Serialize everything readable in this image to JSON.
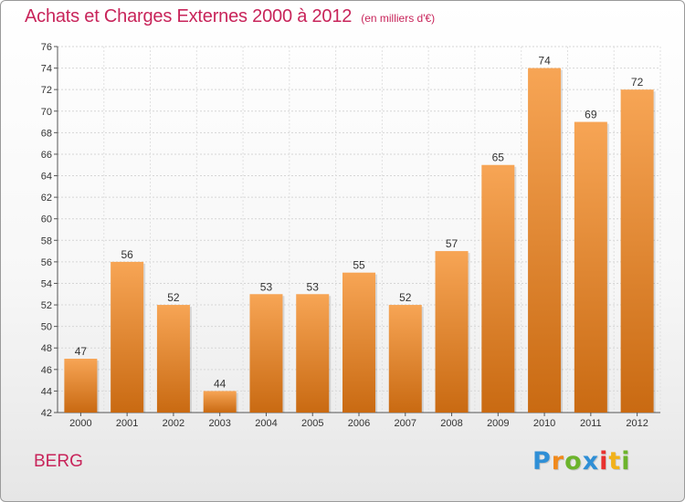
{
  "header": {
    "title": "Achats et Charges Externes 2000 à 2012",
    "subtitle": "(en milliers d'€)"
  },
  "footer": {
    "city": "BERG",
    "logo": [
      "P",
      "r",
      "o",
      "x",
      "i",
      "t",
      "i"
    ]
  },
  "colors": {
    "title": "#c8245a",
    "bar_light": "#f7a555",
    "bar_dark": "#c96a12"
  },
  "chart_data": {
    "type": "bar",
    "categories": [
      "2000",
      "2001",
      "2002",
      "2003",
      "2004",
      "2005",
      "2006",
      "2007",
      "2008",
      "2009",
      "2010",
      "2011",
      "2012"
    ],
    "values": [
      47,
      56,
      52,
      44,
      53,
      53,
      55,
      52,
      57,
      65,
      74,
      69,
      72
    ],
    "title": "Achats et Charges Externes 2000 à 2012",
    "subtitle": "(en milliers d'€)",
    "xlabel": "",
    "ylabel": "",
    "ylim": [
      42,
      76
    ],
    "yticks": [
      42,
      44,
      46,
      48,
      50,
      52,
      54,
      56,
      58,
      60,
      62,
      64,
      66,
      68,
      70,
      72,
      74,
      76
    ],
    "grid": true,
    "data_labels": true
  }
}
